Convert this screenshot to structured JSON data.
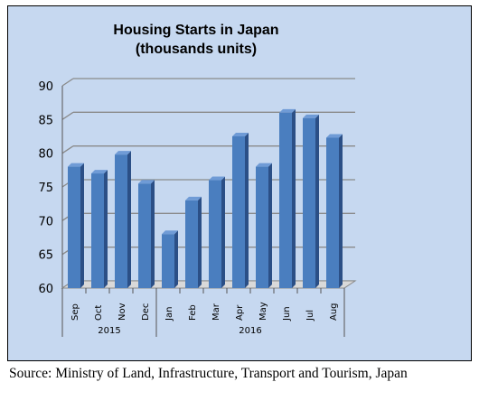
{
  "chart_data": {
    "type": "bar",
    "title": [
      "Housing Starts in Japan",
      "(thousands units)"
    ],
    "categories": [
      "Sep",
      "Oct",
      "Nov",
      "Dec",
      "Jan",
      "Feb",
      "Mar",
      "Apr",
      "May",
      "Jun",
      "Jul",
      "Aug"
    ],
    "groups": [
      {
        "label": "2015",
        "categories": [
          "Sep",
          "Oct",
          "Nov",
          "Dec"
        ]
      },
      {
        "label": "2016",
        "categories": [
          "Jan",
          "Feb",
          "Mar",
          "Apr",
          "May",
          "Jun",
          "Jul",
          "Aug"
        ]
      }
    ],
    "values": [
      78,
      77,
      79.8,
      75.5,
      68,
      73,
      76,
      82.5,
      78,
      86,
      85.2,
      82.3
    ],
    "ylim": [
      60,
      90
    ],
    "yticks": [
      60,
      65,
      70,
      75,
      80,
      85,
      90
    ],
    "grid": true,
    "style_3d": true,
    "bar_color": "#4a7ebf",
    "bar_top_color": "#6f9bd6",
    "bar_side_color": "#2b4f86",
    "background_color": "#c6d8f0"
  },
  "source_note": "Source: Ministry of Land, Infrastructure, Transport and Tourism, Japan"
}
